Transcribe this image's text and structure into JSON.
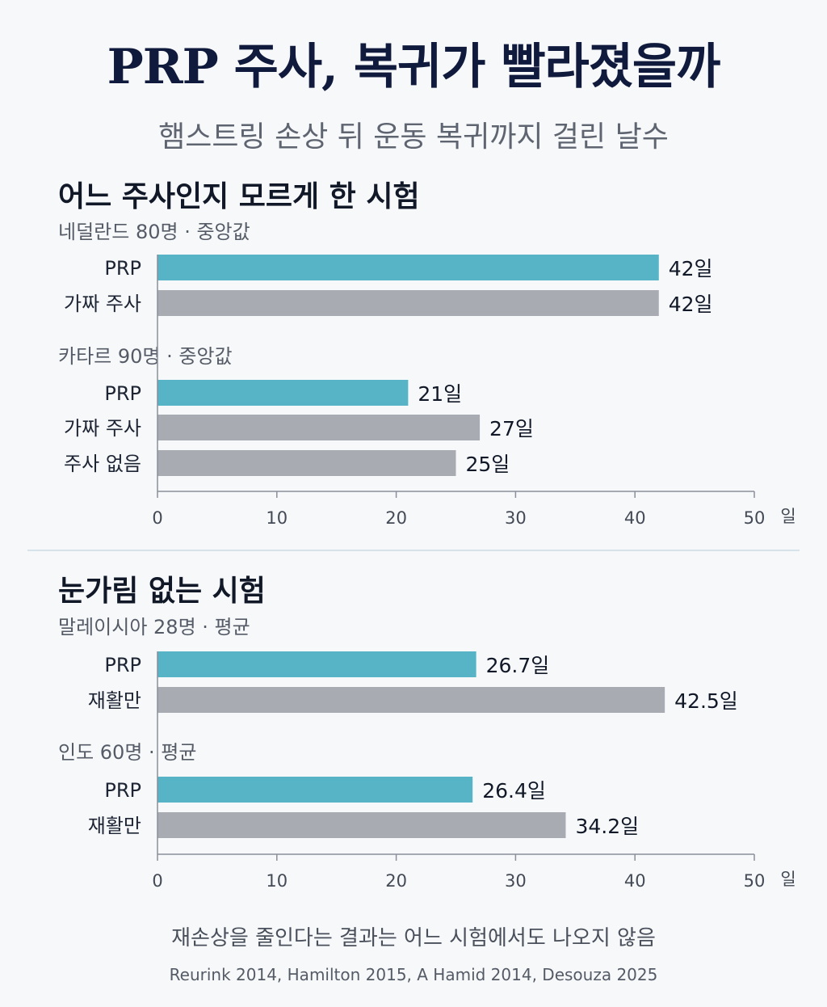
{
  "title": "PRP 주사, 복귀가 빨라졌을까",
  "subtitle": "햄스트링 손상 뒤 운동 복귀까지 걸린 날수",
  "colors": {
    "prp": "#57b3c6",
    "control": "#a9abb2"
  },
  "chart_data": [
    {
      "type": "bar",
      "orientation": "horizontal",
      "section_title": "어느 주사인지 모르게 한 시험",
      "xlim": [
        0,
        50
      ],
      "ticks": [
        "0",
        "10",
        "20",
        "30",
        "40",
        "50"
      ],
      "unit": "일",
      "groups": [
        {
          "label": "네덜란드 80명 · 중앙값",
          "bars": [
            {
              "category": "PRP",
              "value": 42,
              "value_label": "42일",
              "kind": "prp"
            },
            {
              "category": "가짜 주사",
              "value": 42,
              "value_label": "42일",
              "kind": "control"
            }
          ]
        },
        {
          "label": "카타르 90명 · 중앙값",
          "bars": [
            {
              "category": "PRP",
              "value": 21,
              "value_label": "21일",
              "kind": "prp"
            },
            {
              "category": "가짜 주사",
              "value": 27,
              "value_label": "27일",
              "kind": "control"
            },
            {
              "category": "주사 없음",
              "value": 25,
              "value_label": "25일",
              "kind": "control"
            }
          ]
        }
      ]
    },
    {
      "type": "bar",
      "orientation": "horizontal",
      "section_title": "눈가림 없는 시험",
      "xlim": [
        0,
        50
      ],
      "ticks": [
        "0",
        "10",
        "20",
        "30",
        "40",
        "50"
      ],
      "unit": "일",
      "groups": [
        {
          "label": "말레이시아 28명 · 평균",
          "bars": [
            {
              "category": "PRP",
              "value": 26.7,
              "value_label": "26.7일",
              "kind": "prp"
            },
            {
              "category": "재활만",
              "value": 42.5,
              "value_label": "42.5일",
              "kind": "control"
            }
          ]
        },
        {
          "label": "인도 60명 · 평균",
          "bars": [
            {
              "category": "PRP",
              "value": 26.4,
              "value_label": "26.4일",
              "kind": "prp"
            },
            {
              "category": "재활만",
              "value": 34.2,
              "value_label": "34.2일",
              "kind": "control"
            }
          ]
        }
      ]
    }
  ],
  "footnote": "재손상을 줄인다는 결과는 어느 시험에서도 나오지 않음",
  "source": "Reurink 2014, Hamilton 2015, A Hamid 2014, Desouza 2025"
}
